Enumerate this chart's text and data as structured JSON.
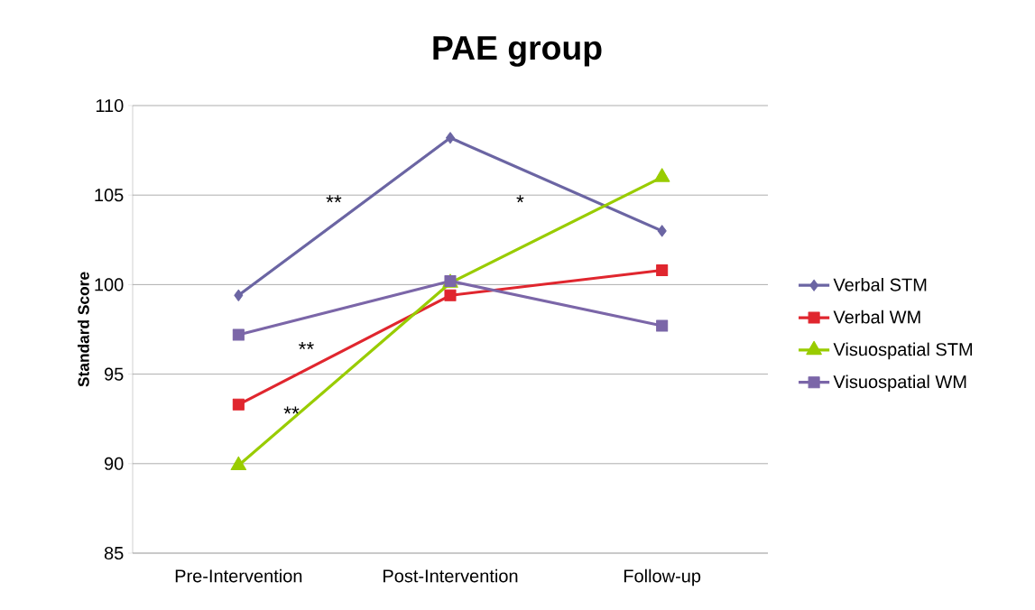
{
  "chart_data": {
    "type": "line",
    "title": "PAE group",
    "ylabel": "Standard Score",
    "categories": [
      "Pre-Intervention",
      "Post-Intervention",
      "Follow-up"
    ],
    "series": [
      {
        "name": "Verbal STM",
        "color": "#6b65a3",
        "marker": "diamond",
        "values": [
          99.4,
          108.2,
          103.0
        ]
      },
      {
        "name": "Verbal WM",
        "color": "#e0262e",
        "marker": "square",
        "values": [
          93.3,
          99.4,
          100.8
        ]
      },
      {
        "name": "Visuospatial STM",
        "color": "#99cc00",
        "marker": "triangle",
        "values": [
          89.9,
          100.1,
          106.0
        ]
      },
      {
        "name": "Visuospatial WM",
        "color": "#7b66a8",
        "marker": "square",
        "values": [
          97.2,
          100.2,
          97.7
        ]
      }
    ],
    "ylim": [
      85,
      110
    ],
    "yticks": [
      85,
      90,
      95,
      100,
      105,
      110
    ],
    "grid": "y",
    "legend": "right",
    "annotations": [
      "**",
      "*",
      "**",
      "**"
    ]
  }
}
